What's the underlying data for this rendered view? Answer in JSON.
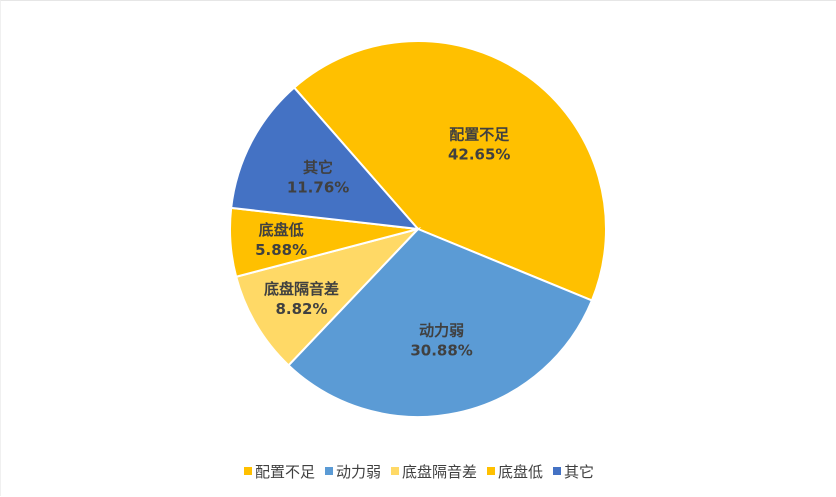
{
  "chart_data": {
    "type": "pie",
    "title": "",
    "categories": [
      "配置不足",
      "动力弱",
      "底盘隔音差",
      "底盘低",
      "其它"
    ],
    "values": [
      42.65,
      30.88,
      8.82,
      5.88,
      11.76
    ],
    "value_labels": [
      "42.65%",
      "30.88%",
      "8.82%",
      "5.88%",
      "11.76%"
    ],
    "colors": [
      "#FFC000",
      "#5B9BD5",
      "#FFD966",
      "#FFC000",
      "#4472C4"
    ],
    "slice_order_clockwise_from_left": [
      "配置不足",
      "动力弱",
      "底盘隔音差",
      "底盘低",
      "其它"
    ],
    "legend_position": "bottom"
  }
}
